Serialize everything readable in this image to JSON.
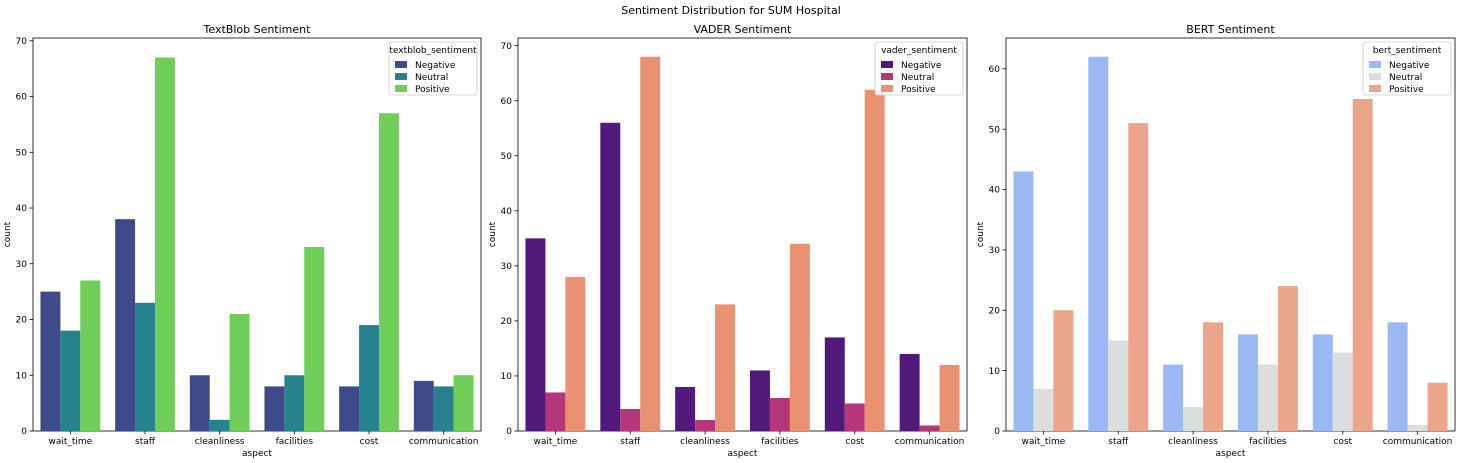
{
  "figure": {
    "title": "Sentiment Distribution for SUM Hospital"
  },
  "chart_data": [
    {
      "type": "bar",
      "title": "TextBlob Sentiment",
      "xlabel": "aspect",
      "ylabel": "count",
      "ylim": [
        0,
        70.5
      ],
      "yticks": [
        0,
        10,
        20,
        30,
        40,
        50,
        60,
        70
      ],
      "categories": [
        "wait_time",
        "staff",
        "cleanliness",
        "facilities",
        "cost",
        "communication"
      ],
      "legend": {
        "title": "textblob_sentiment",
        "placement": "top-right"
      },
      "series": [
        {
          "name": "Negative",
          "color": "#3e4a89",
          "values": [
            25,
            38,
            10,
            8,
            8,
            9
          ]
        },
        {
          "name": "Neutral",
          "color": "#26828e",
          "values": [
            18,
            23,
            2,
            10,
            19,
            8
          ]
        },
        {
          "name": "Positive",
          "color": "#6ece58",
          "values": [
            27,
            67,
            21,
            33,
            57,
            10
          ]
        }
      ]
    },
    {
      "type": "bar",
      "title": "VADER Sentiment",
      "xlabel": "aspect",
      "ylabel": "count",
      "ylim": [
        0,
        71.4
      ],
      "yticks": [
        0,
        10,
        20,
        30,
        40,
        50,
        60,
        70
      ],
      "categories": [
        "wait_time",
        "staff",
        "cleanliness",
        "facilities",
        "cost",
        "communication"
      ],
      "legend": {
        "title": "vader_sentiment",
        "placement": "top-right"
      },
      "series": [
        {
          "name": "Negative",
          "color": "#51197b",
          "values": [
            35,
            56,
            8,
            11,
            17,
            14
          ]
        },
        {
          "name": "Neutral",
          "color": "#b5367a",
          "values": [
            7,
            4,
            2,
            6,
            5,
            1
          ]
        },
        {
          "name": "Positive",
          "color": "#ea9172",
          "values": [
            28,
            68,
            23,
            34,
            62,
            12
          ]
        }
      ]
    },
    {
      "type": "bar",
      "title": "BERT Sentiment",
      "xlabel": "aspect",
      "ylabel": "count",
      "ylim": [
        0,
        65.1
      ],
      "yticks": [
        0,
        10,
        20,
        30,
        40,
        50,
        60
      ],
      "categories": [
        "wait_time",
        "staff",
        "cleanliness",
        "facilities",
        "cost",
        "communication"
      ],
      "legend": {
        "title": "bert_sentiment",
        "placement": "top-right"
      },
      "series": [
        {
          "name": "Negative",
          "color": "#9ab8f4",
          "values": [
            43,
            62,
            11,
            16,
            16,
            18
          ]
        },
        {
          "name": "Neutral",
          "color": "#dcdddd",
          "values": [
            7,
            15,
            4,
            11,
            13,
            1
          ]
        },
        {
          "name": "Positive",
          "color": "#eba58a",
          "values": [
            20,
            51,
            18,
            24,
            55,
            8
          ]
        }
      ]
    }
  ]
}
